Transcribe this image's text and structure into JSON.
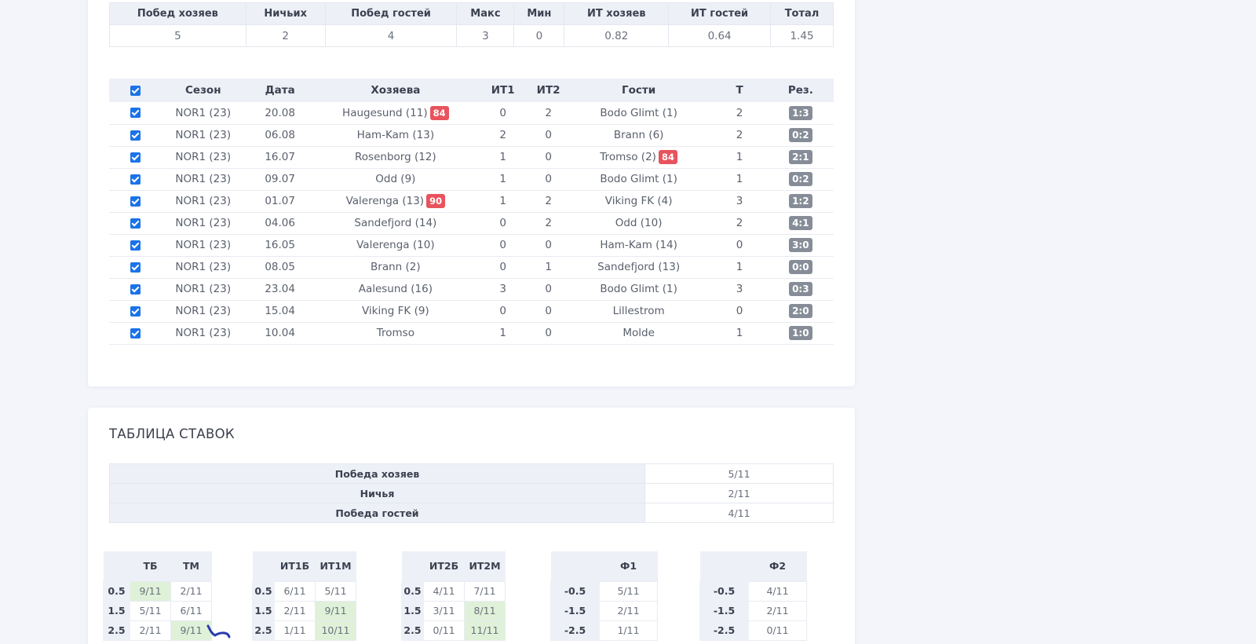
{
  "summary": {
    "headers": [
      "Побед хозяев",
      "Ничьих",
      "Побед гостей",
      "Макс",
      "Мин",
      "ИТ хозяев",
      "ИТ гостей",
      "Тотал"
    ],
    "values": [
      "5",
      "2",
      "4",
      "3",
      "0",
      "0.82",
      "0.64",
      "1.45"
    ]
  },
  "matches": {
    "headers": [
      "Сезон",
      "Дата",
      "Хозяева",
      "ИТ1",
      "ИТ2",
      "Гости",
      "Т",
      "Рез."
    ],
    "rows": [
      {
        "season": "NOR1 (23)",
        "date": "20.08",
        "home": "Haugesund (11)",
        "home_minute": "84",
        "it1": "0",
        "it2": "2",
        "away": "Bodo Glimt (1)",
        "away_minute": "",
        "total": "2",
        "result": "1:3"
      },
      {
        "season": "NOR1 (23)",
        "date": "06.08",
        "home": "Ham-Kam (13)",
        "home_minute": "",
        "it1": "2",
        "it2": "0",
        "away": "Brann (6)",
        "away_minute": "",
        "total": "2",
        "result": "0:2"
      },
      {
        "season": "NOR1 (23)",
        "date": "16.07",
        "home": "Rosenborg (12)",
        "home_minute": "",
        "it1": "1",
        "it2": "0",
        "away": "Tromso (2)",
        "away_minute": "84",
        "total": "1",
        "result": "2:1"
      },
      {
        "season": "NOR1 (23)",
        "date": "09.07",
        "home": "Odd (9)",
        "home_minute": "",
        "it1": "1",
        "it2": "0",
        "away": "Bodo Glimt (1)",
        "away_minute": "",
        "total": "1",
        "result": "0:2"
      },
      {
        "season": "NOR1 (23)",
        "date": "01.07",
        "home": "Valerenga (13)",
        "home_minute": "90",
        "it1": "1",
        "it2": "2",
        "away": "Viking FK (4)",
        "away_minute": "",
        "total": "3",
        "result": "1:2"
      },
      {
        "season": "NOR1 (23)",
        "date": "04.06",
        "home": "Sandefjord (14)",
        "home_minute": "",
        "it1": "0",
        "it2": "2",
        "away": "Odd (10)",
        "away_minute": "",
        "total": "2",
        "result": "4:1"
      },
      {
        "season": "NOR1 (23)",
        "date": "16.05",
        "home": "Valerenga (10)",
        "home_minute": "",
        "it1": "0",
        "it2": "0",
        "away": "Ham-Kam (14)",
        "away_minute": "",
        "total": "0",
        "result": "3:0"
      },
      {
        "season": "NOR1 (23)",
        "date": "08.05",
        "home": "Brann (2)",
        "home_minute": "",
        "it1": "0",
        "it2": "1",
        "away": "Sandefjord (13)",
        "away_minute": "",
        "total": "1",
        "result": "0:0"
      },
      {
        "season": "NOR1 (23)",
        "date": "23.04",
        "home": "Aalesund (16)",
        "home_minute": "",
        "it1": "3",
        "it2": "0",
        "away": "Bodo Glimt (1)",
        "away_minute": "",
        "total": "3",
        "result": "0:3"
      },
      {
        "season": "NOR1 (23)",
        "date": "15.04",
        "home": "Viking FK (9)",
        "home_minute": "",
        "it1": "0",
        "it2": "0",
        "away": "Lillestrom",
        "away_minute": "",
        "total": "0",
        "result": "2:0"
      },
      {
        "season": "NOR1 (23)",
        "date": "10.04",
        "home": "Tromso",
        "home_minute": "",
        "it1": "1",
        "it2": "0",
        "away": "Molde",
        "away_minute": "",
        "total": "1",
        "result": "1:0"
      }
    ]
  },
  "bets": {
    "title": "ТАБЛИЦА СТАВОК",
    "outcomes": [
      {
        "label": "Победа хозяев",
        "value": "5/11"
      },
      {
        "label": "Ничья",
        "value": "2/11"
      },
      {
        "label": "Победа гостей",
        "value": "4/11"
      }
    ],
    "totals": {
      "headers": [
        "ТБ",
        "ТМ"
      ],
      "rows": [
        {
          "line": "0.5",
          "a": "9/11",
          "b": "2/11",
          "hl": "a"
        },
        {
          "line": "1.5",
          "a": "5/11",
          "b": "6/11",
          "hl": ""
        },
        {
          "line": "2.5",
          "a": "2/11",
          "b": "9/11",
          "hl": "b"
        }
      ]
    },
    "it1": {
      "headers": [
        "ИТ1Б",
        "ИТ1М"
      ],
      "rows": [
        {
          "line": "0.5",
          "a": "6/11",
          "b": "5/11",
          "hl": ""
        },
        {
          "line": "1.5",
          "a": "2/11",
          "b": "9/11",
          "hl": "b"
        },
        {
          "line": "2.5",
          "a": "1/11",
          "b": "10/11",
          "hl": "b"
        }
      ]
    },
    "it2": {
      "headers": [
        "ИТ2Б",
        "ИТ2М"
      ],
      "rows": [
        {
          "line": "0.5",
          "a": "4/11",
          "b": "7/11",
          "hl": ""
        },
        {
          "line": "1.5",
          "a": "3/11",
          "b": "8/11",
          "hl": "b"
        },
        {
          "line": "2.5",
          "a": "0/11",
          "b": "11/11",
          "hl": "b"
        }
      ]
    },
    "f1": {
      "headers": [
        "Ф1"
      ],
      "rows": [
        {
          "line": "-0.5",
          "a": "5/11"
        },
        {
          "line": "-1.5",
          "a": "2/11"
        },
        {
          "line": "-2.5",
          "a": "1/11"
        }
      ]
    },
    "f2": {
      "headers": [
        "Ф2"
      ],
      "rows": [
        {
          "line": "-0.5",
          "a": "4/11"
        },
        {
          "line": "-1.5",
          "a": "2/11"
        },
        {
          "line": "-2.5",
          "a": "0/11"
        }
      ]
    }
  }
}
